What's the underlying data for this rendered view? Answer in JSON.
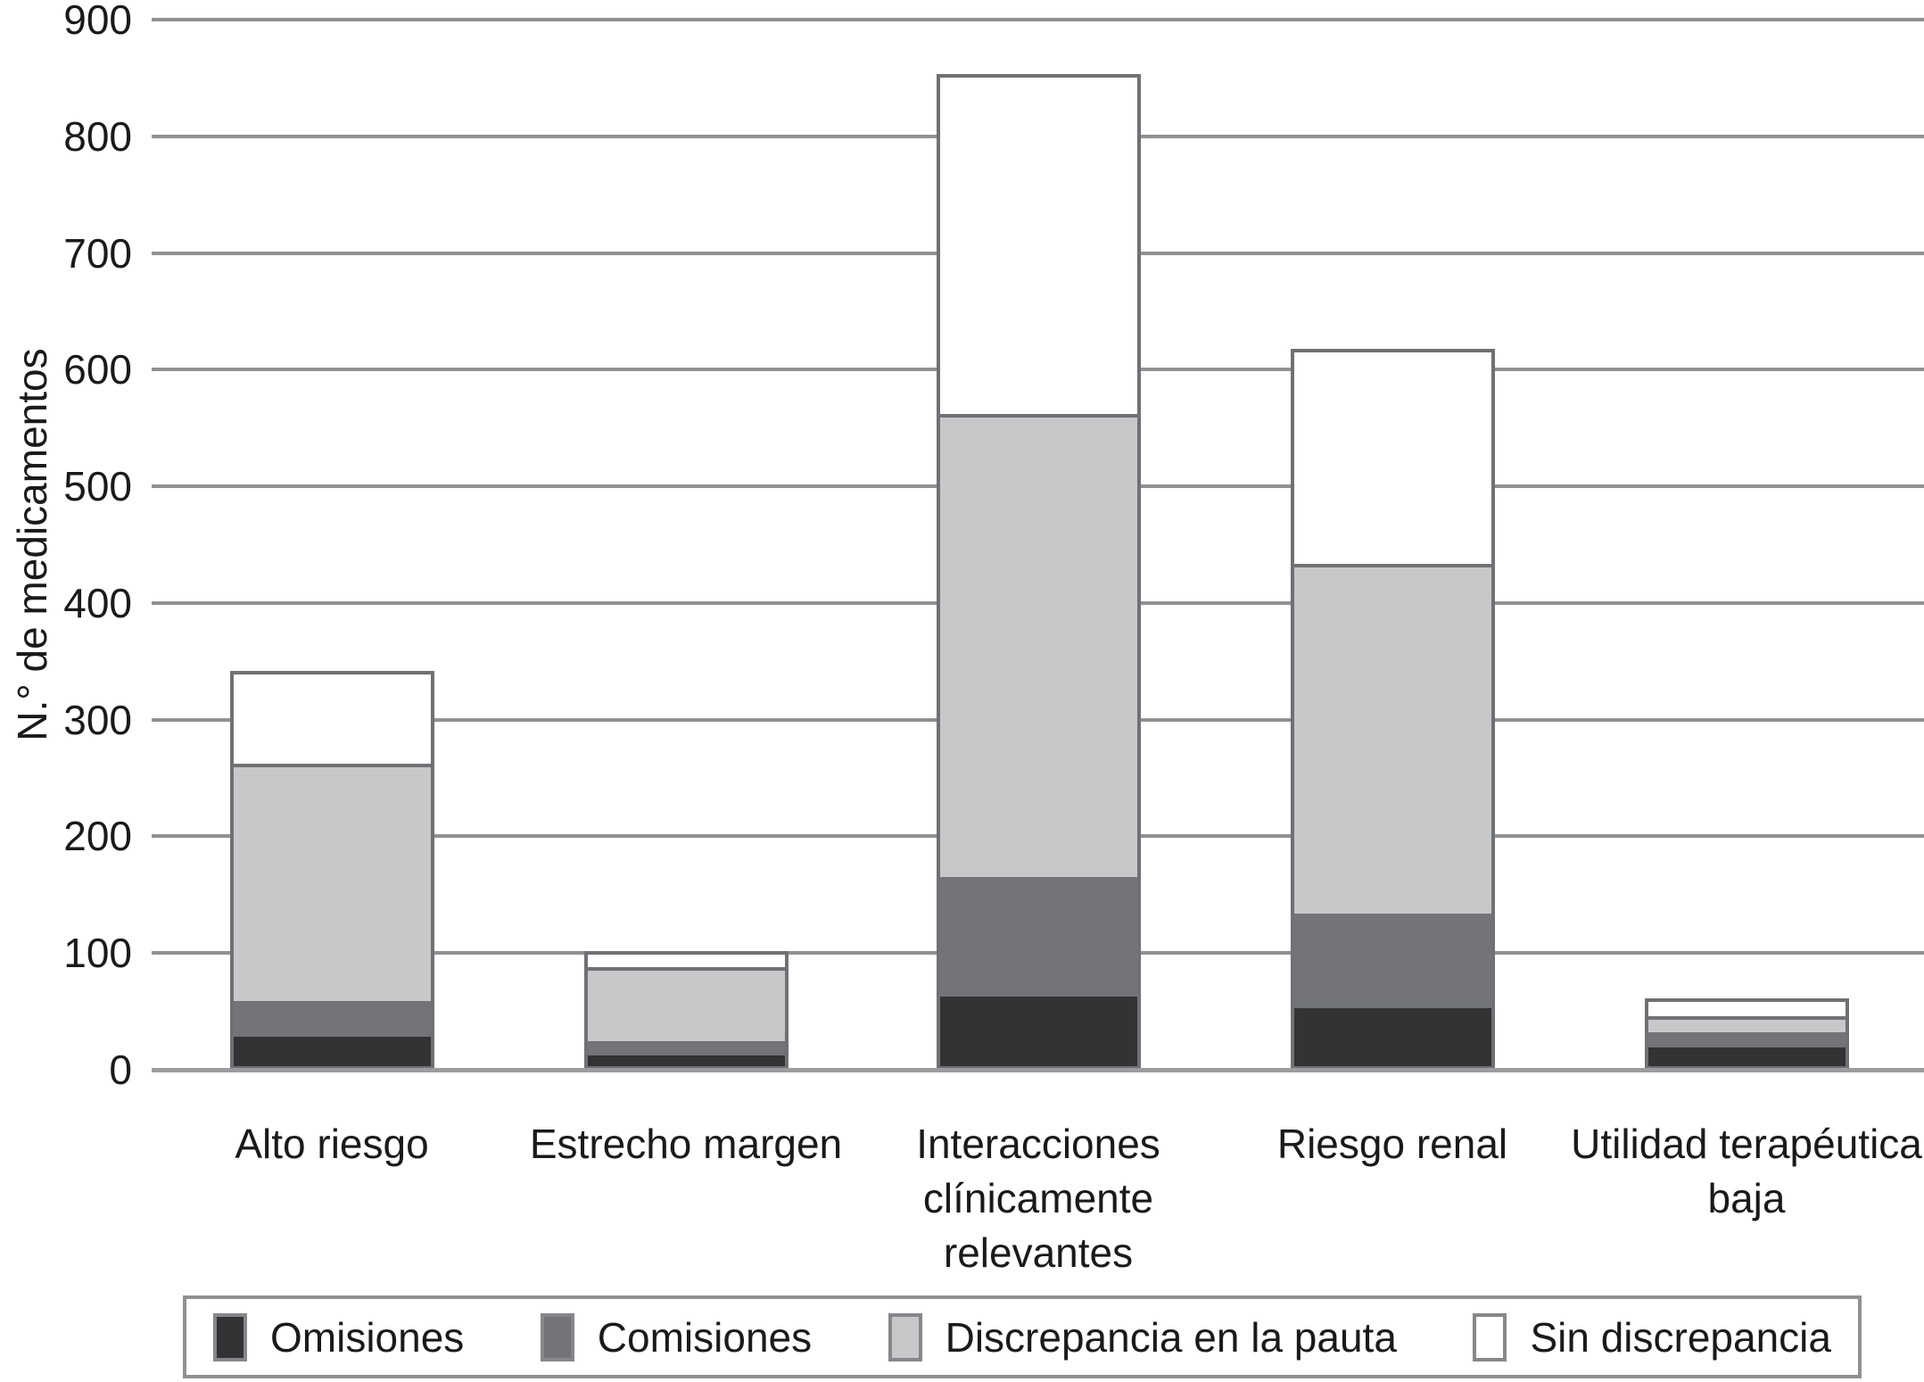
{
  "chart_data": {
    "type": "bar",
    "stacked": true,
    "title": "",
    "xlabel": "",
    "ylabel": "N.° de medicamentos",
    "ylim": [
      0,
      900
    ],
    "ytick_step": 100,
    "yticks": [
      0,
      100,
      200,
      300,
      400,
      500,
      600,
      700,
      800,
      900
    ],
    "grid": "horizontal",
    "legend_position": "bottom",
    "categories": [
      "Alto riesgo",
      "Estrecho margen",
      "Interacciones clínicamente relevantes",
      "Riesgo renal",
      "Utilidad terapéutica baja"
    ],
    "series": [
      {
        "name": "Omisiones",
        "color": "#333234",
        "values": [
          26,
          10,
          60,
          50,
          18
        ]
      },
      {
        "name": "Comisiones",
        "color": "#727478",
        "values": [
          31,
          13,
          103,
          82,
          14
        ]
      },
      {
        "name": "Discrepancia en la pauta",
        "color": "#c7c8ca",
        "values": [
          204,
          64,
          397,
          300,
          12
        ]
      },
      {
        "name": "Sin discrepancia",
        "color": "#ffffff",
        "values": [
          81,
          15,
          293,
          186,
          17
        ]
      }
    ],
    "stack_totals": [
      342,
      102,
      853,
      618,
      61
    ]
  },
  "colors": {
    "gridline": "#8f9193",
    "baseline": "#9a9c9e",
    "bar_border": "#6f7174",
    "legend_border": "#8f9193",
    "text": "#1a1a1a",
    "background": "#ffffff"
  }
}
